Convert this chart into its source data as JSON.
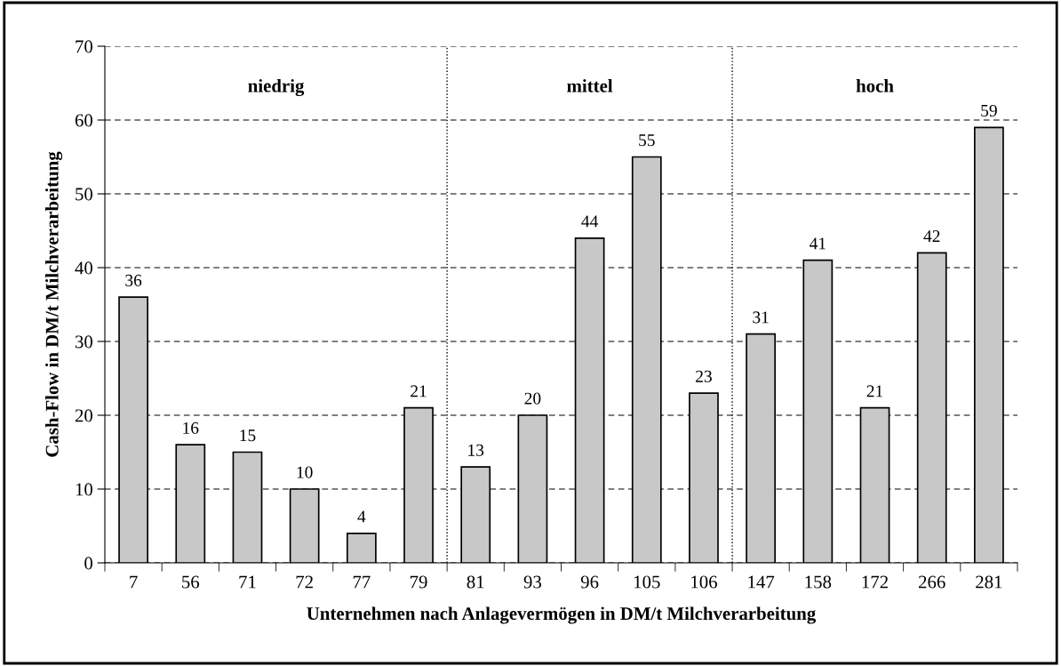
{
  "chart_data": {
    "type": "bar",
    "xlabel": "Unternehmen nach Anlagevermögen in DM/t Milchverarbeitung",
    "ylabel": "Cash-Flow in DM/t Milchverarbeitung",
    "categories": [
      "7",
      "56",
      "71",
      "72",
      "77",
      "79",
      "81",
      "93",
      "96",
      "105",
      "106",
      "147",
      "158",
      "172",
      "266",
      "281"
    ],
    "values": [
      36,
      16,
      15,
      10,
      4,
      21,
      13,
      20,
      44,
      55,
      23,
      31,
      41,
      21,
      42,
      59
    ],
    "color": "#c8c8c8",
    "ylim": [
      0,
      70
    ],
    "yticks": [
      0,
      10,
      20,
      30,
      40,
      50,
      60,
      70
    ],
    "grid": "y",
    "data_labels": true,
    "annotations": [
      "niedrig",
      "mittel",
      "hoch"
    ]
  }
}
